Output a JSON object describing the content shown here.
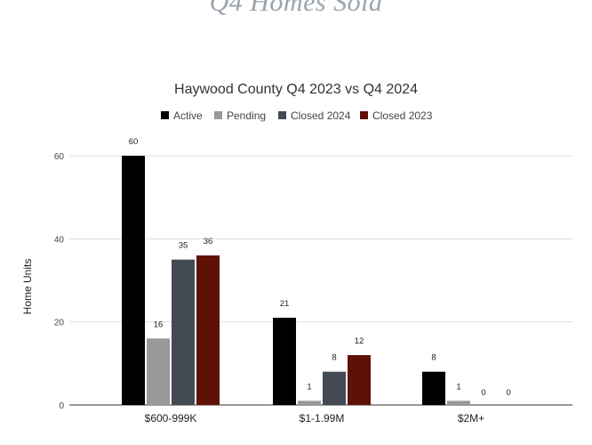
{
  "page": {
    "heading": "Q4 Homes Sold"
  },
  "chart_data": {
    "type": "bar",
    "title": "Haywood County Q4 2023 vs Q4 2024",
    "xlabel": "",
    "ylabel": "Home Units",
    "categories": [
      "$600-999K",
      "$1-1.99M",
      "$2M+"
    ],
    "series": [
      {
        "name": "Active",
        "color": "#000000",
        "values": [
          60,
          21,
          8
        ]
      },
      {
        "name": "Pending",
        "color": "#999999",
        "values": [
          16,
          1,
          1
        ]
      },
      {
        "name": "Closed 2024",
        "color": "#434a54",
        "values": [
          35,
          8,
          0
        ]
      },
      {
        "name": "Closed 2023",
        "color": "#5e1105",
        "values": [
          36,
          12,
          0
        ]
      }
    ],
    "ylim": [
      0,
      60
    ],
    "yticks": [
      0,
      20,
      40,
      60
    ],
    "grid": true,
    "legend": "top-center",
    "data_labels": true
  }
}
